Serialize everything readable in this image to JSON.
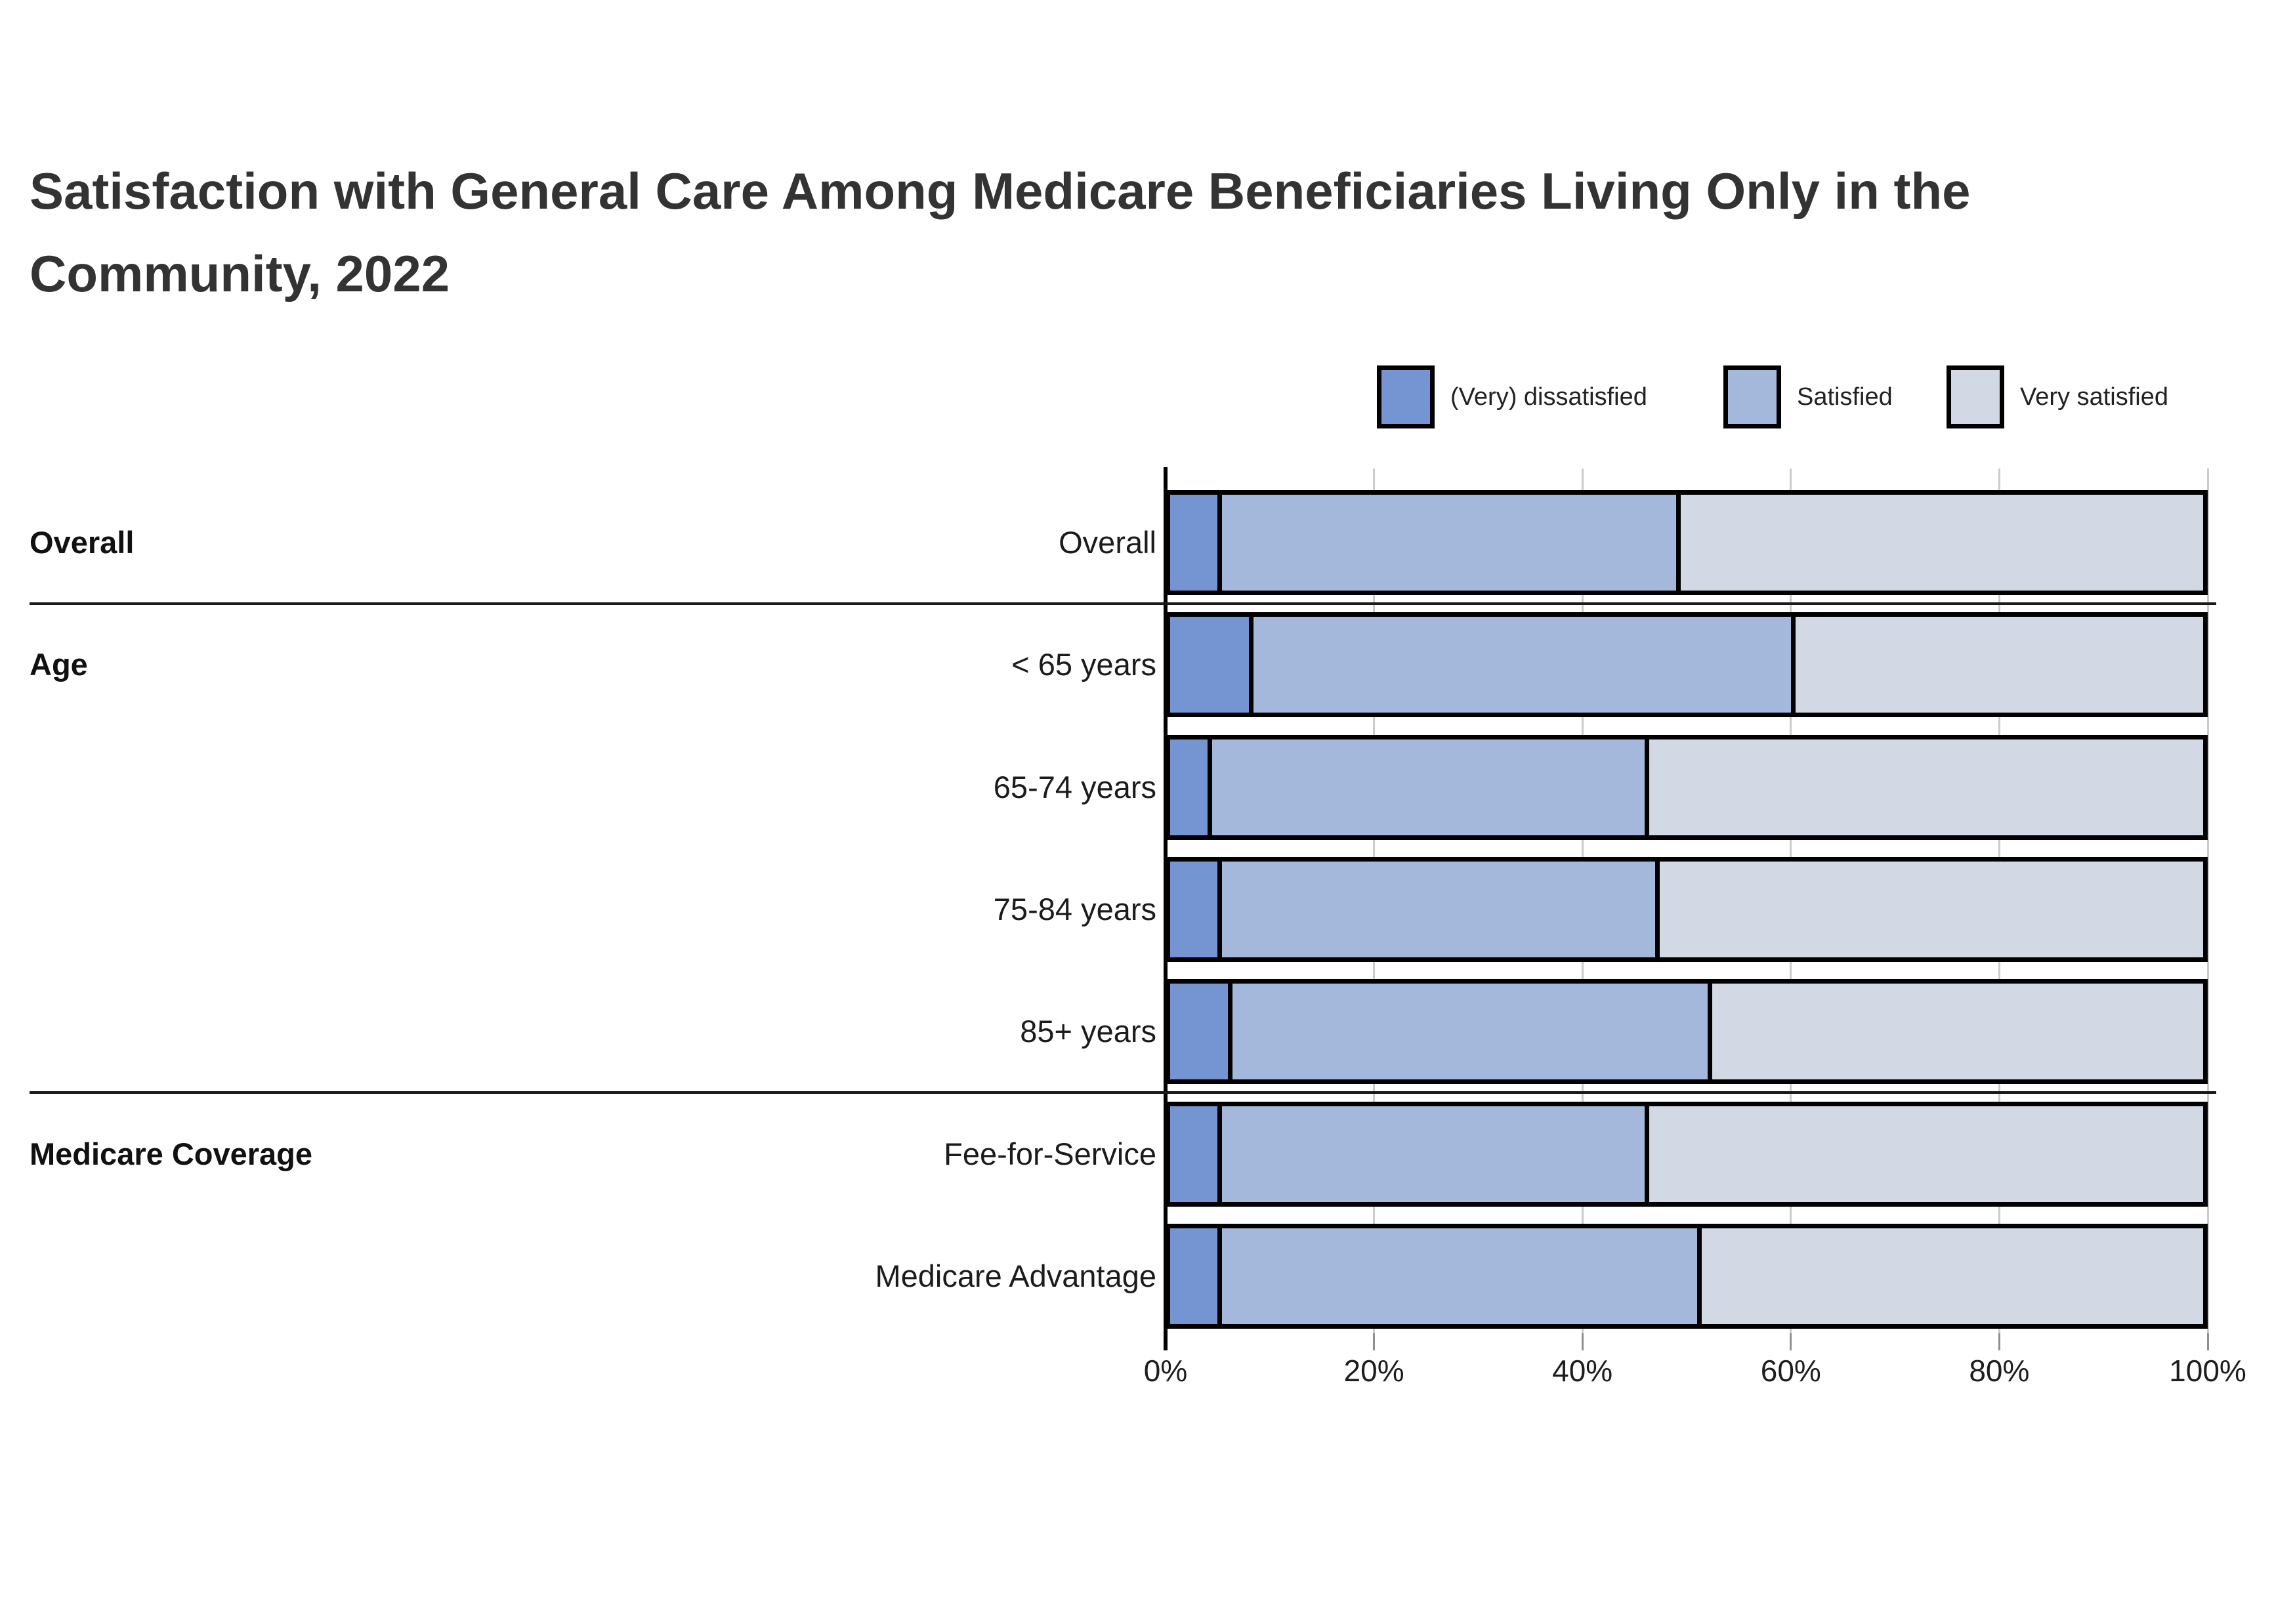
{
  "title": {
    "lines": [
      "Satisfaction with General Care Among Medicare Beneficiaries Living Only in the",
      "Community, 2022"
    ]
  },
  "legend": {
    "position": "top-right",
    "items": [
      {
        "label": "(Very) dissatisfied",
        "color": "#7494d2"
      },
      {
        "label": "Satisfied",
        "color": "#a4b8db"
      },
      {
        "label": "Very satisfied",
        "color": "#d2d9e4"
      }
    ]
  },
  "axis": {
    "ticks": [
      {
        "label": "0%",
        "value": 0
      },
      {
        "label": "20%",
        "value": 20
      },
      {
        "label": "40%",
        "value": 40
      },
      {
        "label": "60%",
        "value": 60
      },
      {
        "label": "80%",
        "value": 80
      },
      {
        "label": "100%",
        "value": 100
      }
    ]
  },
  "groups": [
    {
      "label": "Overall",
      "rows": [
        0
      ]
    },
    {
      "label": "Age",
      "rows": [
        1,
        2,
        3,
        4
      ]
    },
    {
      "label": "Medicare Coverage",
      "rows": [
        5,
        6
      ]
    }
  ],
  "chart_data": {
    "type": "bar",
    "variant": "horizontal-stacked",
    "title": "Satisfaction with General Care Among Medicare Beneficiaries Living Only in the Community, 2022",
    "categories": [
      "Overall",
      "< 65 years",
      "65-74 years",
      "75-84 years",
      "85+ years",
      "Fee-for-Service",
      "Medicare Advantage"
    ],
    "series": [
      {
        "name": "(Very) dissatisfied",
        "color": "#7494d2",
        "values": [
          5,
          8,
          4,
          5,
          6,
          5,
          5
        ]
      },
      {
        "name": "Satisfied",
        "color": "#a4b8db",
        "values": [
          44,
          52,
          42,
          42,
          46,
          41,
          46
        ]
      },
      {
        "name": "Very satisfied",
        "color": "#d2d9e4",
        "values": [
          51,
          40,
          54,
          53,
          48,
          54,
          49
        ]
      }
    ],
    "xlabel": "",
    "ylabel": "",
    "xlim": [
      0,
      100
    ],
    "grid": true,
    "legend_position": "top-right"
  }
}
